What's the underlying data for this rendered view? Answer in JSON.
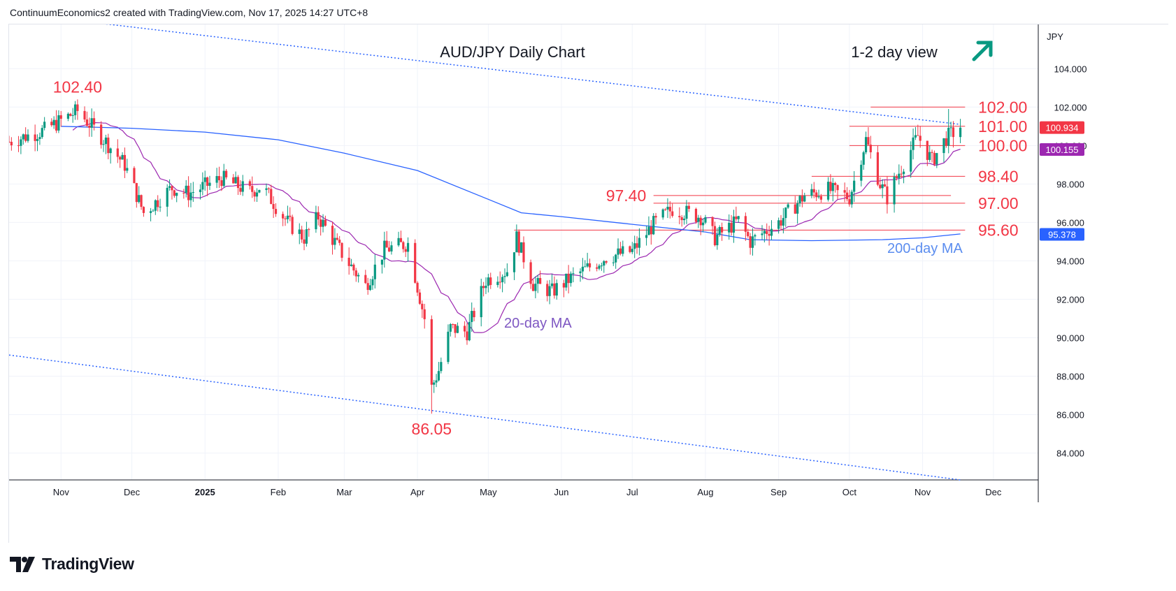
{
  "header": {
    "text": "ContinuumEconomics2 created with TradingView.com, Nov 17, 2025 14:27 UTC+8"
  },
  "footer": {
    "brand": "TradingView",
    "brand_icon": "tradingview-logo-icon"
  },
  "chart_data": {
    "type": "candlestick",
    "title": "AUD/JPY Daily Chart",
    "subtitle": "1-2 day view",
    "view_direction_icon": "arrow-up-right-icon",
    "currency_label": "JPY",
    "ylim": [
      82.6,
      106.3
    ],
    "y_ticks": [
      "104.000",
      "102.000",
      "100.000",
      "98.000",
      "96.000",
      "94.000",
      "92.000",
      "90.000",
      "88.000",
      "86.000",
      "84.000"
    ],
    "y_tick_values": [
      104,
      102,
      100,
      98,
      96,
      94,
      92,
      90,
      88,
      86,
      84
    ],
    "x_ticks": [
      "Nov",
      "Dec",
      "2025",
      "Feb",
      "Mar",
      "Apr",
      "May",
      "Jun",
      "Jul",
      "Aug",
      "Sep",
      "Oct",
      "Nov",
      "Dec"
    ],
    "x_tick_dates": [
      "2024-11-01",
      "2024-12-01",
      "2025-01-01",
      "2025-02-01",
      "2025-03-01",
      "2025-04-01",
      "2025-05-01",
      "2025-06-01",
      "2025-07-01",
      "2025-08-01",
      "2025-09-01",
      "2025-10-01",
      "2025-11-01",
      "2025-12-01"
    ],
    "x_range": [
      "2024-10-10",
      "2025-12-20"
    ],
    "grid": true,
    "colors": {
      "up": "#089981",
      "down": "#f23645",
      "ma20": "#9c27b0",
      "ma200": "#2962ff",
      "level_line": "#f23645",
      "trend_line": "#2962ff",
      "label_red": "#f23645",
      "label_ma200": "#5b8def",
      "label_ma20": "#7e57c2"
    },
    "price_badges": [
      {
        "value": "100.934",
        "color": "#f23645"
      },
      {
        "value": "100.155",
        "color": "#9c27b0"
      },
      {
        "value": "95.378",
        "color": "#2962ff"
      }
    ],
    "levels": [
      {
        "label": "102.00",
        "value": 102.0,
        "from": "2025-10-10"
      },
      {
        "label": "101.00",
        "value": 101.0,
        "from": "2025-10-01"
      },
      {
        "label": "100.00",
        "value": 100.0,
        "from": "2025-10-01"
      },
      {
        "label": "98.40",
        "value": 98.4,
        "from": "2025-09-15"
      },
      {
        "label": "97.00",
        "value": 97.0,
        "from": "2025-07-10"
      },
      {
        "label": "95.60",
        "value": 95.6,
        "from": "2025-05-12"
      }
    ],
    "level_extra": {
      "label": "97.40",
      "value": 97.4,
      "from": "2025-07-10",
      "to": "2025-11-13"
    },
    "annotations": [
      {
        "text": "102.40",
        "date": "2024-11-08",
        "value": 102.4
      },
      {
        "text": "86.05",
        "date": "2025-04-07",
        "value": 86.05
      }
    ],
    "series_labels": {
      "ma20": "20-day MA",
      "ma200": "200-day MA"
    },
    "trendlines": [
      {
        "from": [
          "2024-11-01",
          106.6
        ],
        "to": [
          "2025-11-17",
          101.1
        ]
      },
      {
        "from": [
          "2024-10-10",
          89.1
        ],
        "to": [
          "2025-11-17",
          82.6
        ]
      }
    ],
    "ma200": [
      [
        "2024-11-01",
        101.0
      ],
      [
        "2024-12-01",
        100.9
      ],
      [
        "2025-01-01",
        100.7
      ],
      [
        "2025-02-01",
        100.3
      ],
      [
        "2025-03-01",
        99.6
      ],
      [
        "2025-04-01",
        98.7
      ],
      [
        "2025-05-01",
        97.2
      ],
      [
        "2025-05-15",
        96.5
      ],
      [
        "2025-06-01",
        96.3
      ],
      [
        "2025-07-01",
        95.9
      ],
      [
        "2025-08-01",
        95.5
      ],
      [
        "2025-08-20",
        95.1
      ],
      [
        "2025-09-15",
        95.05
      ],
      [
        "2025-10-15",
        95.1
      ],
      [
        "2025-11-01",
        95.2
      ],
      [
        "2025-11-17",
        95.4
      ]
    ],
    "key_points": [
      [
        "2024-10-10",
        100.2
      ],
      [
        "2024-10-25",
        100.8
      ],
      [
        "2024-11-08",
        101.8
      ],
      [
        "2024-11-20",
        100.2
      ],
      [
        "2024-11-28",
        99.0
      ],
      [
        "2024-12-06",
        96.5
      ],
      [
        "2024-12-18",
        97.8
      ],
      [
        "2024-12-25",
        97.5
      ],
      [
        "2025-01-08",
        98.3
      ],
      [
        "2025-01-20",
        97.6
      ],
      [
        "2025-01-25",
        97.9
      ],
      [
        "2025-02-05",
        96.0
      ],
      [
        "2025-02-12",
        95.2
      ],
      [
        "2025-02-18",
        96.3
      ],
      [
        "2025-03-01",
        94.2
      ],
      [
        "2025-03-10",
        92.7
      ],
      [
        "2025-03-18",
        94.6
      ],
      [
        "2025-03-28",
        94.9
      ],
      [
        "2025-04-04",
        91.0
      ],
      [
        "2025-04-07",
        87.4
      ],
      [
        "2025-04-10",
        88.3
      ],
      [
        "2025-04-15",
        90.5
      ],
      [
        "2025-04-22",
        90.3
      ],
      [
        "2025-04-30",
        93.0
      ],
      [
        "2025-05-09",
        93.5
      ],
      [
        "2025-05-13",
        95.2
      ],
      [
        "2025-05-20",
        92.8
      ],
      [
        "2025-05-28",
        92.4
      ],
      [
        "2025-06-05",
        93.1
      ],
      [
        "2025-06-20",
        94.2
      ],
      [
        "2025-07-01",
        94.5
      ],
      [
        "2025-07-10",
        95.9
      ],
      [
        "2025-07-18",
        96.7
      ],
      [
        "2025-07-30",
        96.3
      ],
      [
        "2025-08-05",
        95.2
      ],
      [
        "2025-08-15",
        96.1
      ],
      [
        "2025-08-20",
        95.0
      ],
      [
        "2025-09-01",
        96.0
      ],
      [
        "2025-09-12",
        97.4
      ],
      [
        "2025-09-22",
        97.7
      ],
      [
        "2025-10-01",
        97.3
      ],
      [
        "2025-10-08",
        100.3
      ],
      [
        "2025-10-14",
        98.0
      ],
      [
        "2025-10-17",
        97.3
      ],
      [
        "2025-10-22",
        98.6
      ],
      [
        "2025-10-30",
        100.5
      ],
      [
        "2025-11-05",
        99.2
      ],
      [
        "2025-11-11",
        100.4
      ],
      [
        "2025-11-17",
        100.93
      ]
    ]
  }
}
